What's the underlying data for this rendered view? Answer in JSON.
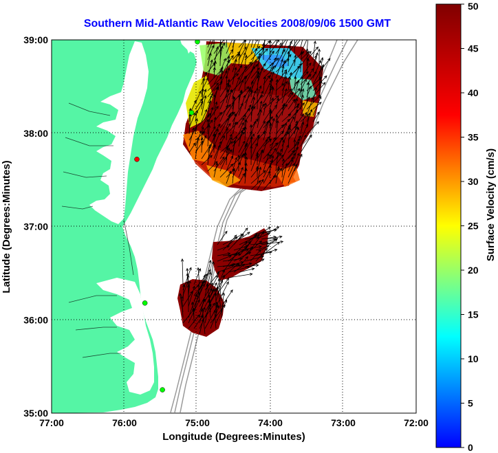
{
  "map": {
    "title": "Southern Mid-Atlantic Raw Velocities 2008/09/06 1500 GMT",
    "xlabel": "Longitude (Degrees:Minutes)",
    "ylabel": "Latitude (Degrees:Minutes)",
    "lon_ticks": [
      {
        "value": -77,
        "label": "77:00"
      },
      {
        "value": -76,
        "label": "76:00"
      },
      {
        "value": -75,
        "label": "75:00"
      },
      {
        "value": -74,
        "label": "74:00"
      },
      {
        "value": -73,
        "label": "73:00"
      },
      {
        "value": -72,
        "label": "72:00"
      }
    ],
    "lat_ticks": [
      {
        "value": 35,
        "label": "35:00"
      },
      {
        "value": 36,
        "label": "36:00"
      },
      {
        "value": 37,
        "label": "37:00"
      },
      {
        "value": 38,
        "label": "38:00"
      },
      {
        "value": 39,
        "label": "39:00"
      }
    ],
    "lon_range": [
      -77,
      -72
    ],
    "lat_range": [
      35,
      39
    ],
    "grid": true,
    "land_color": "#55f5a5",
    "colors": {
      "title": "#0000ff",
      "arrows": "#000000",
      "bathymetry": "#999999"
    }
  },
  "colorbar": {
    "label": "Surface Velocity (cm/s)",
    "range": [
      0,
      50
    ],
    "ticks": [
      "0",
      "5",
      "10",
      "15",
      "20",
      "25",
      "30",
      "35",
      "40",
      "45",
      "50"
    ],
    "colormap": "jet"
  },
  "stations": [
    {
      "name": "station",
      "lon": -75.0,
      "lat": 38.98,
      "color": "#00ff00"
    },
    {
      "name": "station",
      "lon": -75.83,
      "lat": 37.72,
      "color": "#ff0000"
    },
    {
      "name": "station",
      "lon": -75.08,
      "lat": 38.22,
      "color": "#00ff00"
    },
    {
      "name": "station",
      "lon": -75.72,
      "lat": 36.18,
      "color": "#00ff00"
    },
    {
      "name": "station",
      "lon": -75.48,
      "lat": 35.25,
      "color": "#00ff00"
    }
  ],
  "chart_data": {
    "type": "map",
    "xlabel": "Longitude (Degrees:Minutes)",
    "ylabel": "Latitude (Degrees:Minutes)",
    "xlim": [
      -77,
      -72
    ],
    "ylim": [
      35,
      39
    ],
    "color_scale": {
      "label": "Surface Velocity (cm/s)",
      "min": 0,
      "max": 50
    },
    "velocity_fields": [
      {
        "region": "north",
        "lon_range": [
          -75.2,
          -73.3
        ],
        "lat_range": [
          37.3,
          39.0
        ],
        "speed_range_cm_s": [
          10,
          50
        ],
        "direction": "northeast"
      },
      {
        "region": "central",
        "lon_range": [
          -74.8,
          -73.9
        ],
        "lat_range": [
          36.4,
          37.0
        ],
        "speed_range_cm_s": [
          45,
          50
        ],
        "direction": "northeast"
      },
      {
        "region": "south",
        "lon_range": [
          -75.4,
          -74.8
        ],
        "lat_range": [
          35.8,
          36.5
        ],
        "speed_range_cm_s": [
          45,
          50
        ],
        "direction": "north-northeast"
      }
    ]
  }
}
